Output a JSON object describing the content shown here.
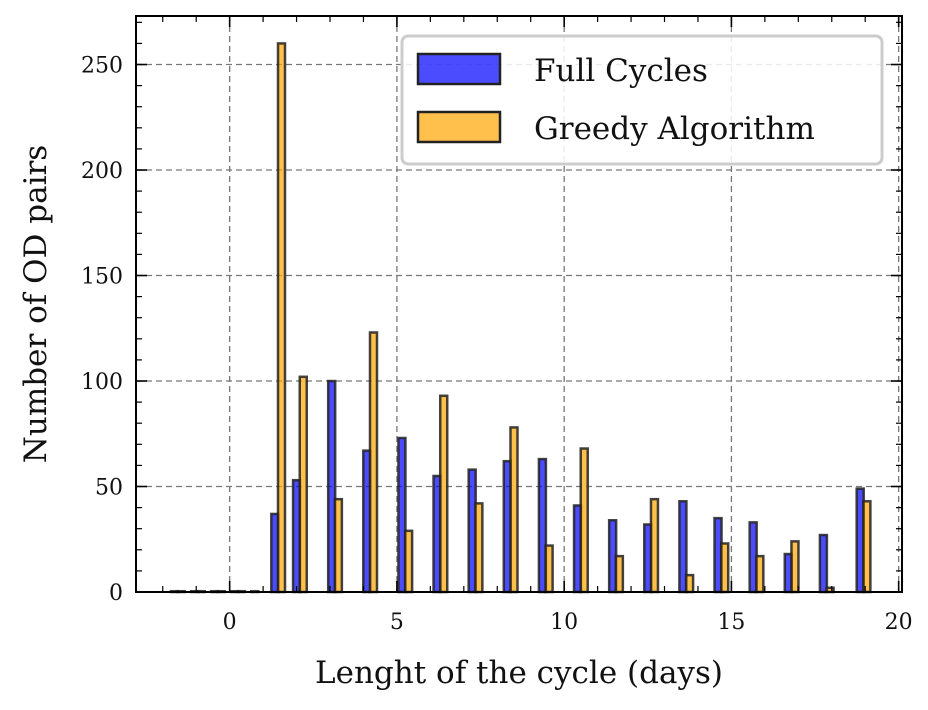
{
  "chart_data": {
    "type": "bar",
    "title": "",
    "xlabel": "Lenght of the cycle (days)",
    "ylabel": "Number of OD pairs",
    "xlim": [
      -2.8,
      20.1
    ],
    "ylim": [
      0,
      273
    ],
    "xticks": [
      0,
      5,
      10,
      15,
      20
    ],
    "yticks": [
      0,
      50,
      100,
      150,
      200,
      250
    ],
    "grid": true,
    "legend_position": "top-right",
    "series": [
      {
        "name": "Full Cycles",
        "color": "#0000ff",
        "x": [
          -1.65,
          -1.05,
          -0.45,
          0.15,
          0.75,
          1.35,
          2.0,
          3.05,
          4.1,
          5.15,
          6.2,
          7.25,
          8.3,
          9.35,
          10.4,
          11.45,
          12.5,
          13.55,
          14.6,
          15.65,
          16.7,
          17.75,
          18.85
        ],
        "values": [
          0,
          0,
          0,
          0,
          0,
          37,
          53,
          100,
          67,
          73,
          55,
          58,
          62,
          63,
          41,
          34,
          32,
          43,
          35,
          33,
          18,
          27,
          49
        ]
      },
      {
        "name": "Greedy Algorithm",
        "color": "#ffa500",
        "x": [
          -1.45,
          -0.85,
          -0.25,
          0.35,
          1.55,
          2.2,
          3.25,
          4.3,
          5.35,
          6.4,
          7.45,
          8.5,
          9.55,
          10.6,
          11.65,
          12.7,
          13.75,
          14.8,
          15.85,
          16.9,
          17.95,
          19.05
        ],
        "values": [
          0,
          0,
          0,
          0,
          260,
          102,
          44,
          123,
          29,
          93,
          42,
          78,
          22,
          68,
          17,
          44,
          8,
          23,
          17,
          24,
          2,
          43
        ]
      }
    ]
  }
}
